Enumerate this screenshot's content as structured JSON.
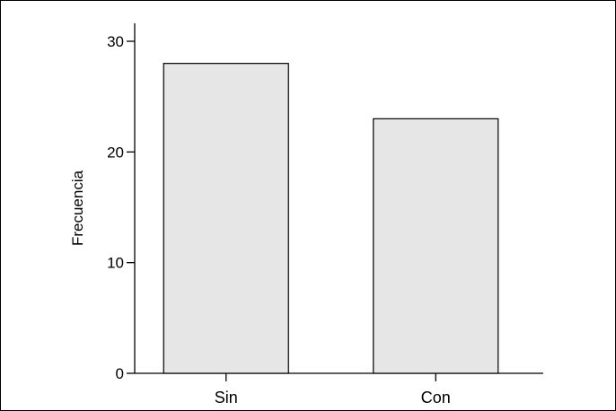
{
  "chart_data": {
    "type": "bar",
    "title": "",
    "xlabel": "",
    "ylabel": "Frecuencia",
    "categories": [
      "Sin",
      "Con"
    ],
    "values": [
      28,
      23
    ],
    "ylim": [
      0,
      30
    ],
    "yticks": [
      0,
      10,
      20,
      30
    ],
    "grid": false,
    "colors": {
      "bar_fill": "#e6e6e6",
      "bar_stroke": "#000000",
      "axis": "#000000"
    }
  }
}
